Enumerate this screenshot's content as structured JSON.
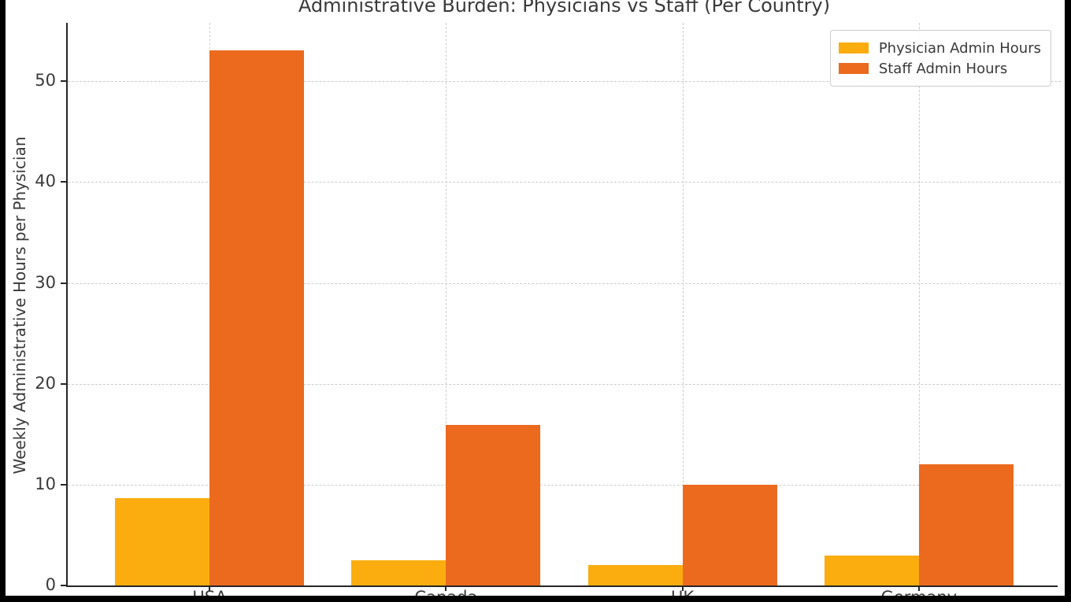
{
  "chart_data": {
    "type": "bar",
    "title": "Administrative Burden: Physicians vs Staff (Per Country)",
    "categories": [
      "USA",
      "Canada",
      "UK",
      "Germany"
    ],
    "series": [
      {
        "name": "Physician Admin Hours",
        "color": "#FBAD10",
        "values": [
          8.7,
          2.5,
          2.0,
          3.0
        ]
      },
      {
        "name": "Staff Admin Hours",
        "color": "#EB6A1E",
        "values": [
          53.1,
          15.9,
          10.0,
          12.0
        ]
      }
    ],
    "xlabel": "",
    "ylabel": "Weekly Administrative Hours per Physician",
    "yticks": [
      0,
      10,
      20,
      30,
      40,
      50
    ],
    "ylim": [
      0,
      55.8
    ],
    "x_padding_units": 0.6,
    "bar_width_units": 0.4,
    "grid": "both, dashed",
    "legend_position": "upper right"
  },
  "colors": {
    "background": "#ffffff",
    "frame": "#000000",
    "grid": "#cccccc",
    "spine": "#262626",
    "text": "#3a3a3a"
  }
}
